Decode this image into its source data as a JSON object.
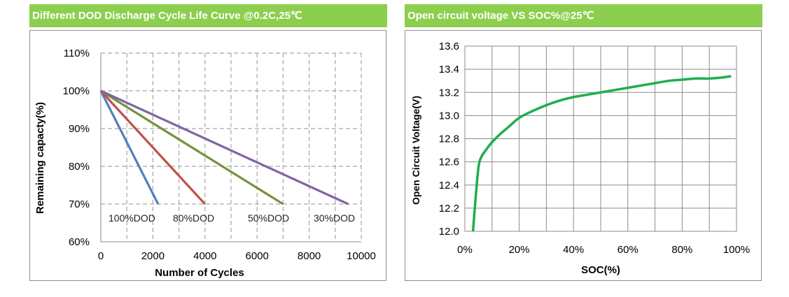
{
  "colors": {
    "header_bg": "#8ccf4e",
    "dod_100": "#4f81bd",
    "dod_80": "#c0504d",
    "dod_50": "#77933c",
    "dod_30": "#8064a2",
    "ocv_line": "#1fae4b"
  },
  "panels": {
    "left_header": "Different DOD Discharge Cycle Life Curve @0.2C,25℃",
    "right_header": "Open circuit voltage VS SOC%@25℃"
  },
  "chart_data": [
    {
      "type": "line",
      "title": "Different DOD Discharge Cycle Life Curve @0.2C,25℃",
      "xlabel": "Number of Cycles",
      "ylabel": "Remaining capacty(%)",
      "xlim": [
        0,
        10000
      ],
      "ylim": [
        60,
        110
      ],
      "x_ticks": [
        "0",
        "2000",
        "4000",
        "6000",
        "8000",
        "10000"
      ],
      "y_ticks": [
        "60%",
        "70%",
        "80%",
        "90%",
        "100%",
        "110%"
      ],
      "grid": "dashed vertical and horizontal",
      "series": [
        {
          "name": "100%DOD",
          "x": [
            0,
            2200
          ],
          "y": [
            100,
            70
          ]
        },
        {
          "name": "80%DOD",
          "x": [
            0,
            4000
          ],
          "y": [
            100,
            70
          ]
        },
        {
          "name": "50%DOD",
          "x": [
            0,
            7000
          ],
          "y": [
            100,
            70
          ]
        },
        {
          "name": "30%DOD",
          "x": [
            0,
            9500
          ],
          "y": [
            100,
            70
          ]
        }
      ]
    },
    {
      "type": "line",
      "title": "Open circuit voltage VS SOC%@25℃",
      "xlabel": "SOC(%)",
      "ylabel": "Open Circuit Voltage(V)",
      "xlim": [
        0,
        100
      ],
      "ylim": [
        12.0,
        13.6
      ],
      "x_ticks": [
        "0%",
        "20%",
        "40%",
        "60%",
        "80%",
        "100%"
      ],
      "y_ticks": [
        "12.0",
        "12.2",
        "12.4",
        "12.6",
        "12.8",
        "13.0",
        "13.2",
        "13.4",
        "13.6"
      ],
      "grid": "solid vertical and horizontal",
      "series": [
        {
          "name": "",
          "x": [
            3,
            4,
            5,
            6,
            8,
            10,
            13,
            16,
            20,
            25,
            30,
            35,
            40,
            45,
            50,
            55,
            60,
            65,
            70,
            75,
            80,
            85,
            90,
            95,
            98
          ],
          "y": [
            12.0,
            12.3,
            12.55,
            12.64,
            12.71,
            12.77,
            12.84,
            12.9,
            12.98,
            13.04,
            13.09,
            13.13,
            13.16,
            13.18,
            13.2,
            13.22,
            13.24,
            13.26,
            13.28,
            13.3,
            13.31,
            13.32,
            13.32,
            13.33,
            13.34
          ]
        }
      ]
    }
  ]
}
